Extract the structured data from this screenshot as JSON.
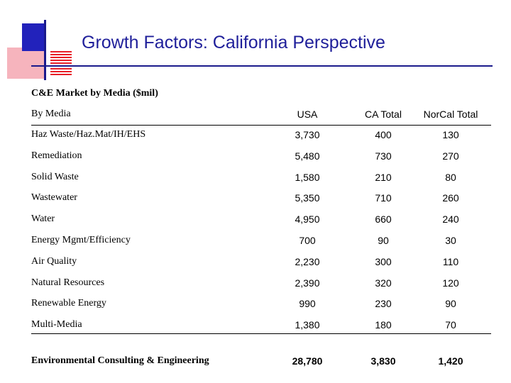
{
  "title": "Growth Factors: California Perspective",
  "subtitle": "C&E Market by Media ($mil)",
  "columns": [
    "By Media",
    "USA",
    "CA Total",
    "NorCal Total"
  ],
  "rows": [
    {
      "label": "Haz Waste/Haz.Mat/IH/EHS",
      "usa": "3,730",
      "ca": "400",
      "norcal": "130"
    },
    {
      "label": "Remediation",
      "usa": "5,480",
      "ca": "730",
      "norcal": "270"
    },
    {
      "label": "Solid Waste",
      "usa": "1,580",
      "ca": "210",
      "norcal": "80"
    },
    {
      "label": "Wastewater",
      "usa": "5,350",
      "ca": "710",
      "norcal": "260"
    },
    {
      "label": "Water",
      "usa": "4,950",
      "ca": "660",
      "norcal": "240"
    },
    {
      "label": "Energy Mgmt/Efficiency",
      "usa": "700",
      "ca": "90",
      "norcal": "30"
    },
    {
      "label": "Air Quality",
      "usa": "2,230",
      "ca": "300",
      "norcal": "110"
    },
    {
      "label": "Natural Resources",
      "usa": "2,390",
      "ca": "320",
      "norcal": "120"
    },
    {
      "label": "Renewable Energy",
      "usa": "990",
      "ca": "230",
      "norcal": "90"
    },
    {
      "label": "Multi-Media",
      "usa": "1,380",
      "ca": "180",
      "norcal": "70"
    }
  ],
  "total": {
    "label": "Environmental Consulting & Engineering",
    "usa": "28,780",
    "ca": "3,830",
    "norcal": "1,420"
  },
  "colors": {
    "title": "#1f1f9a",
    "blue_square": "#2222bb",
    "pink_square": "#f6b4bd",
    "stripes": "#e8202a"
  }
}
